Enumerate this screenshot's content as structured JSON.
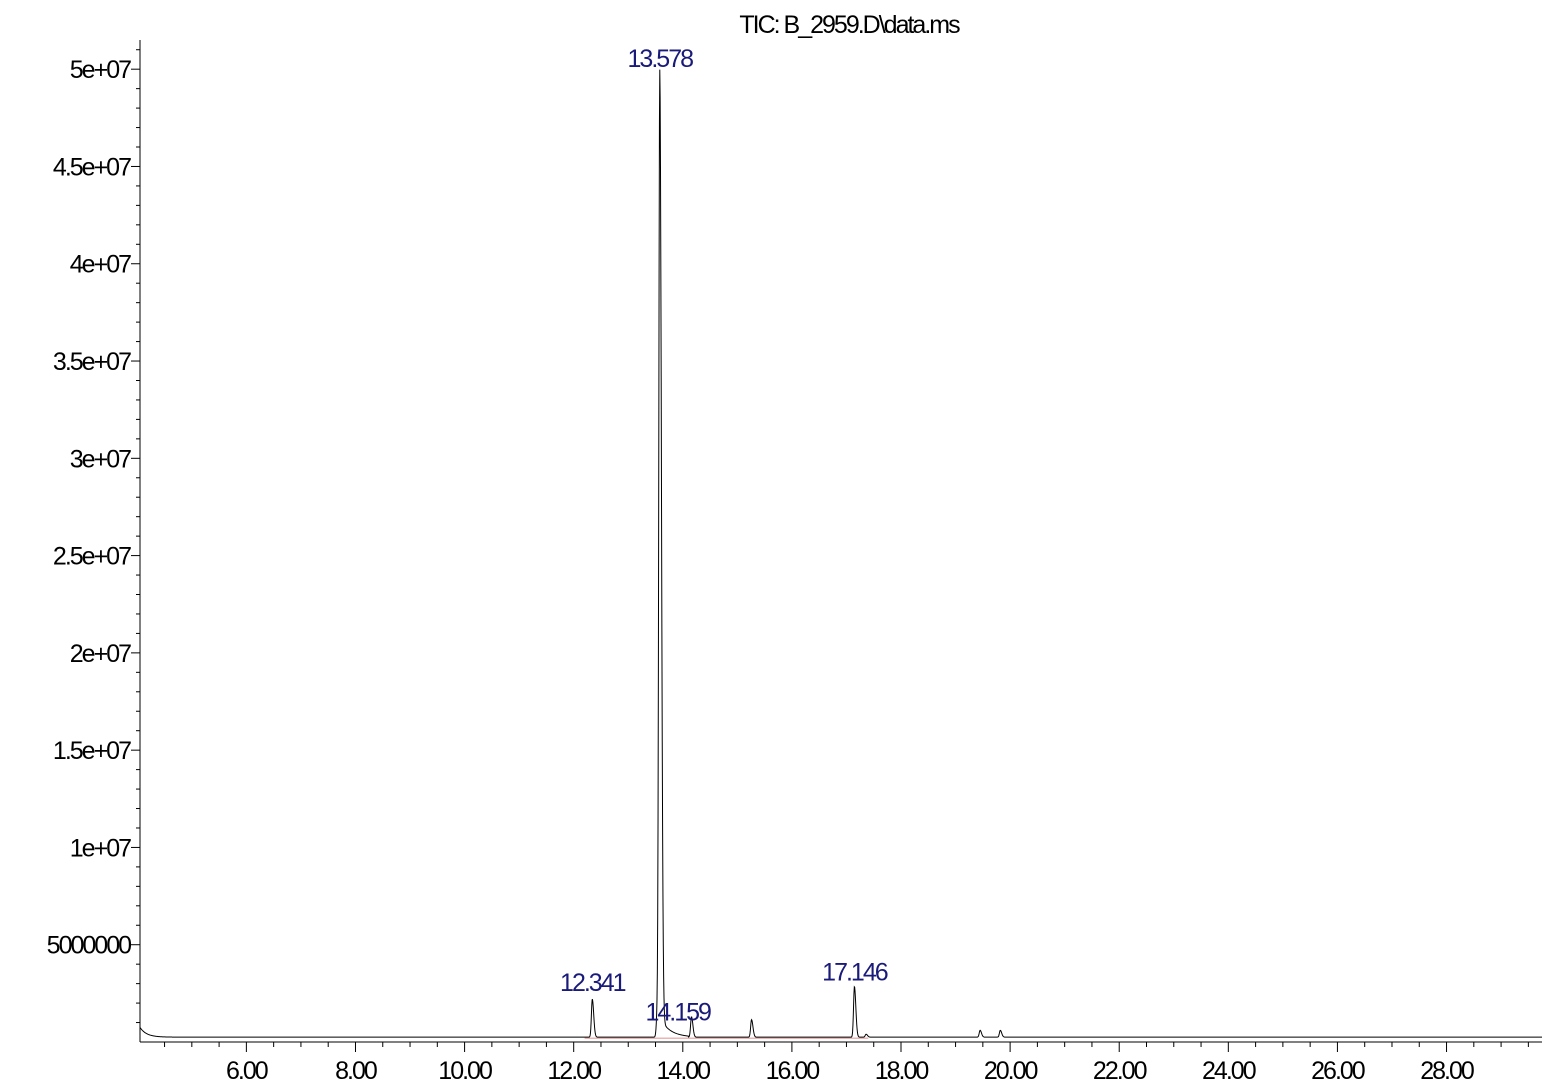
{
  "chart_data": {
    "type": "line",
    "title": "TIC: B_2959.D\\data.ms",
    "xlabel": "",
    "ylabel": "",
    "xlim": [
      4.05,
      29.75
    ],
    "ylim": [
      0,
      51500000
    ],
    "grid": false,
    "x_ticks": [
      "6.00",
      "8.00",
      "10.00",
      "12.00",
      "14.00",
      "16.00",
      "18.00",
      "20.00",
      "22.00",
      "24.00",
      "26.00",
      "28.00"
    ],
    "x_tick_values": [
      6,
      8,
      10,
      12,
      14,
      16,
      18,
      20,
      22,
      24,
      26,
      28
    ],
    "y_ticks": [
      "5000000",
      "1e+07",
      "1.5e+07",
      "2e+07",
      "2.5e+07",
      "3e+07",
      "3.5e+07",
      "4e+07",
      "4.5e+07",
      "5e+07"
    ],
    "y_tick_values": [
      5000000,
      10000000,
      15000000,
      20000000,
      25000000,
      30000000,
      35000000,
      40000000,
      45000000,
      50000000
    ],
    "baseline": 250000,
    "peaks": [
      {
        "label": "12.341",
        "rt": 12.341,
        "height": 2200000
      },
      {
        "label": "13.578",
        "rt": 13.578,
        "height": 49800000
      },
      {
        "label": "14.159",
        "rt": 14.159,
        "height": 1300000
      },
      {
        "label": "17.146",
        "rt": 17.146,
        "height": 2850000
      }
    ],
    "minor_peaks": [
      {
        "rt": 13.53,
        "height": 1300000
      },
      {
        "rt": 15.26,
        "height": 1150000
      },
      {
        "rt": 17.36,
        "height": 400000
      },
      {
        "rt": 19.45,
        "height": 600000
      },
      {
        "rt": 19.82,
        "height": 600000
      },
      {
        "rt": 23.6,
        "height": 250000
      }
    ],
    "colors": {
      "trace": "#000000",
      "baseline_fit": "#cc0000",
      "peak_label": "#1a1a7a"
    }
  }
}
